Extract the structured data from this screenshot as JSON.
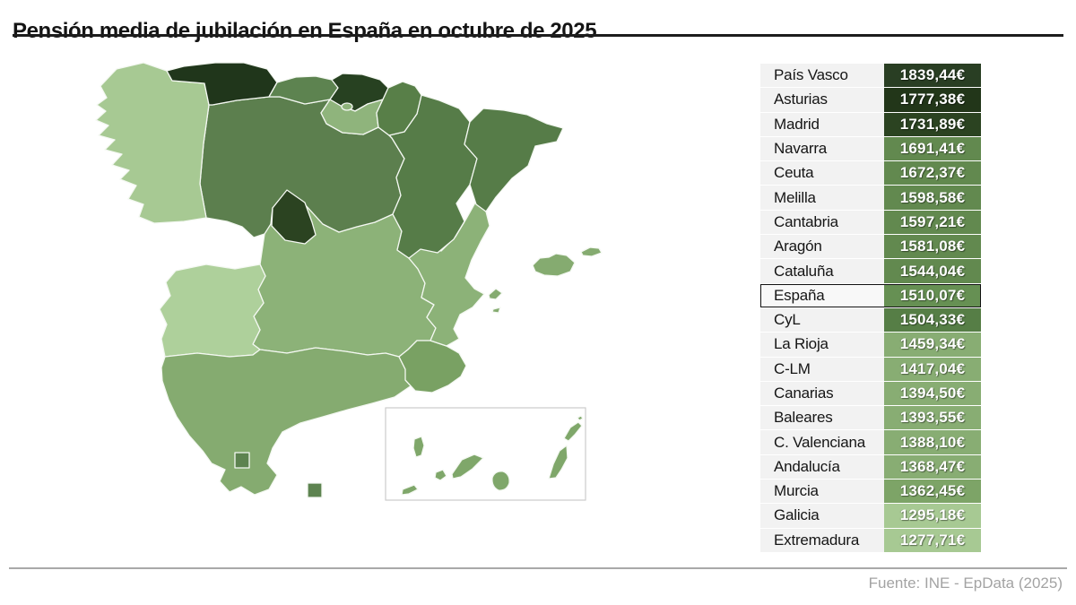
{
  "title": "Pensión media de jubilación en España en octubre de 2025",
  "source": "Fuente: INE - EpData (2025)",
  "table": {
    "rows": [
      {
        "label": "País Vasco",
        "value": "1839,44€",
        "num": 1839.44,
        "color": "#293e23",
        "highlight": false
      },
      {
        "label": "Asturias",
        "value": "1777,38€",
        "num": 1777.38,
        "color": "#223619",
        "highlight": false
      },
      {
        "label": "Madrid",
        "value": "1731,89€",
        "num": 1731.89,
        "color": "#2b4321",
        "highlight": false
      },
      {
        "label": "Navarra",
        "value": "1691,41€",
        "num": 1691.41,
        "color": "#62894f",
        "highlight": false
      },
      {
        "label": "Ceuta",
        "value": "1672,37€",
        "num": 1672.37,
        "color": "#62894f",
        "highlight": false
      },
      {
        "label": "Melilla",
        "value": "1598,58€",
        "num": 1598.58,
        "color": "#62894f",
        "highlight": false
      },
      {
        "label": "Cantabria",
        "value": "1597,21€",
        "num": 1597.21,
        "color": "#62894f",
        "highlight": false
      },
      {
        "label": "Aragón",
        "value": "1581,08€",
        "num": 1581.08,
        "color": "#62894f",
        "highlight": false
      },
      {
        "label": "Cataluña",
        "value": "1544,04€",
        "num": 1544.04,
        "color": "#62894f",
        "highlight": false
      },
      {
        "label": "España",
        "value": "1510,07€",
        "num": 1510.07,
        "color": "#669053",
        "highlight": true
      },
      {
        "label": "CyL",
        "value": "1504,33€",
        "num": 1504.33,
        "color": "#567e46",
        "highlight": false
      },
      {
        "label": "La Rioja",
        "value": "1459,34€",
        "num": 1459.34,
        "color": "#88ad73",
        "highlight": false
      },
      {
        "label": "C-LM",
        "value": "1417,04€",
        "num": 1417.04,
        "color": "#88ad73",
        "highlight": false
      },
      {
        "label": "Canarias",
        "value": "1394,50€",
        "num": 1394.5,
        "color": "#88ad73",
        "highlight": false
      },
      {
        "label": "Baleares",
        "value": "1393,55€",
        "num": 1393.55,
        "color": "#88ad73",
        "highlight": false
      },
      {
        "label": "C. Valenciana",
        "value": "1388,10€",
        "num": 1388.1,
        "color": "#88ad73",
        "highlight": false
      },
      {
        "label": "Andalucía",
        "value": "1368,47€",
        "num": 1368.47,
        "color": "#88ad73",
        "highlight": false
      },
      {
        "label": "Murcia",
        "value": "1362,45€",
        "num": 1362.45,
        "color": "#7da467",
        "highlight": false
      },
      {
        "label": "Galicia",
        "value": "1295,18€",
        "num": 1295.18,
        "color": "#a7c993",
        "highlight": false
      },
      {
        "label": "Extremadura",
        "value": "1277,71€",
        "num": 1277.71,
        "color": "#a7c993",
        "highlight": false
      }
    ]
  },
  "map": {
    "colors": {
      "galicia": "#a7c993",
      "asturias": "#20361b",
      "cantabria": "#5d8350",
      "pais_vasco": "#274121",
      "navarra": "#587f48",
      "la_rioja": "#8fb47c",
      "castilla_y_leon": "#5c7f4e",
      "madrid": "#2b4321",
      "aragon": "#567c48",
      "cataluna": "#567c48",
      "castilla_la_mancha": "#8cb278",
      "extremadura": "#aed09b",
      "c_valenciana": "#8cb278",
      "murcia": "#79a163",
      "andalucia": "#85ab70",
      "baleares": "#85ab70",
      "canarias": "#7fa76a",
      "ceuta": "#5d8350",
      "melilla": "#5d8350",
      "enclave": "#8fb47c"
    }
  },
  "chart_data": {
    "type": "heatmap",
    "subtype": "choropleth-map-of-spain-with-ranked-value-list",
    "title": "Pensión media de jubilación en España en octubre de 2025",
    "unit": "EUR per month",
    "categories": [
      "País Vasco",
      "Asturias",
      "Madrid",
      "Navarra",
      "Ceuta",
      "Melilla",
      "Cantabria",
      "Aragón",
      "Cataluña",
      "España",
      "CyL",
      "La Rioja",
      "C-LM",
      "Canarias",
      "Baleares",
      "C. Valenciana",
      "Andalucía",
      "Murcia",
      "Galicia",
      "Extremadura"
    ],
    "values": [
      1839.44,
      1777.38,
      1731.89,
      1691.41,
      1672.37,
      1598.58,
      1597.21,
      1581.08,
      1544.04,
      1510.07,
      1504.33,
      1459.34,
      1417.04,
      1394.5,
      1393.55,
      1388.1,
      1368.47,
      1362.45,
      1295.18,
      1277.71
    ],
    "value_labels": [
      "1839,44€",
      "1777,38€",
      "1731,89€",
      "1691,41€",
      "1672,37€",
      "1598,58€",
      "1597,21€",
      "1581,08€",
      "1544,04€",
      "1510,07€",
      "1504,33€",
      "1459,34€",
      "1417,04€",
      "1394,50€",
      "1393,55€",
      "1388,10€",
      "1368,47€",
      "1362,45€",
      "1295,18€",
      "1277,71€"
    ],
    "highlighted_category": "España",
    "color_scale": {
      "min": 1277.71,
      "max": 1839.44,
      "min_color": "#aed09b",
      "max_color": "#20361b"
    },
    "legend_position": "right-ranked-list",
    "source": "Fuente: INE - EpData (2025)"
  }
}
